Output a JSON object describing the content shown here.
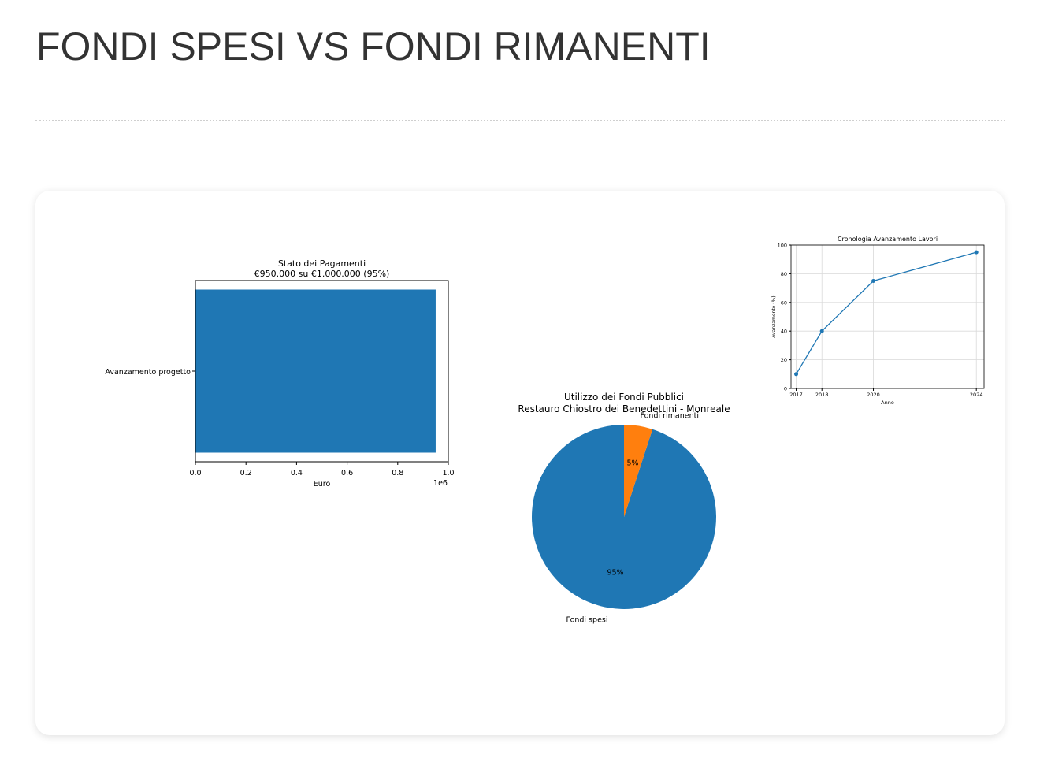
{
  "page": {
    "title": "FONDI SPESI VS FONDI RIMANENTI"
  },
  "colors": {
    "blue": "#1f77b4",
    "orange": "#ff7f0e",
    "grid": "#d9d9d9"
  },
  "chart_data": [
    {
      "id": "payments",
      "type": "bar",
      "orientation": "horizontal",
      "title": "Stato dei Pagamenti",
      "subtitle": "€950.000 su €1.000.000 (95%)",
      "categories": [
        "Avanzamento progetto"
      ],
      "values": [
        950000
      ],
      "xlabel": "Euro",
      "x_offset_label": "1e6",
      "xlim": [
        0,
        1000000
      ],
      "xticks": [
        0,
        200000,
        400000,
        600000,
        800000,
        1000000
      ],
      "xtick_labels": [
        "0.0",
        "0.2",
        "0.4",
        "0.6",
        "0.8",
        "1.0"
      ],
      "grid": false
    },
    {
      "id": "funds",
      "type": "pie",
      "title": "Utilizzo dei Fondi Pubblici",
      "subtitle": "Restauro Chiostro dei Benedettini - Monreale",
      "slices": [
        {
          "label": "Fondi spesi",
          "value": 95,
          "pct_label": "95%"
        },
        {
          "label": "Fondi rimanenti",
          "value": 5,
          "pct_label": "5%"
        }
      ]
    },
    {
      "id": "timeline",
      "type": "line",
      "title": "Cronologia Avanzamento Lavori",
      "xlabel": "Anno",
      "ylabel": "Avanzamento (%)",
      "x": [
        2017,
        2018,
        2020,
        2024
      ],
      "y": [
        10,
        40,
        75,
        95
      ],
      "xlim": [
        2016.8,
        2024.3
      ],
      "ylim": [
        0,
        100
      ],
      "yticks": [
        0,
        20,
        40,
        60,
        80,
        100
      ],
      "grid": true
    }
  ]
}
